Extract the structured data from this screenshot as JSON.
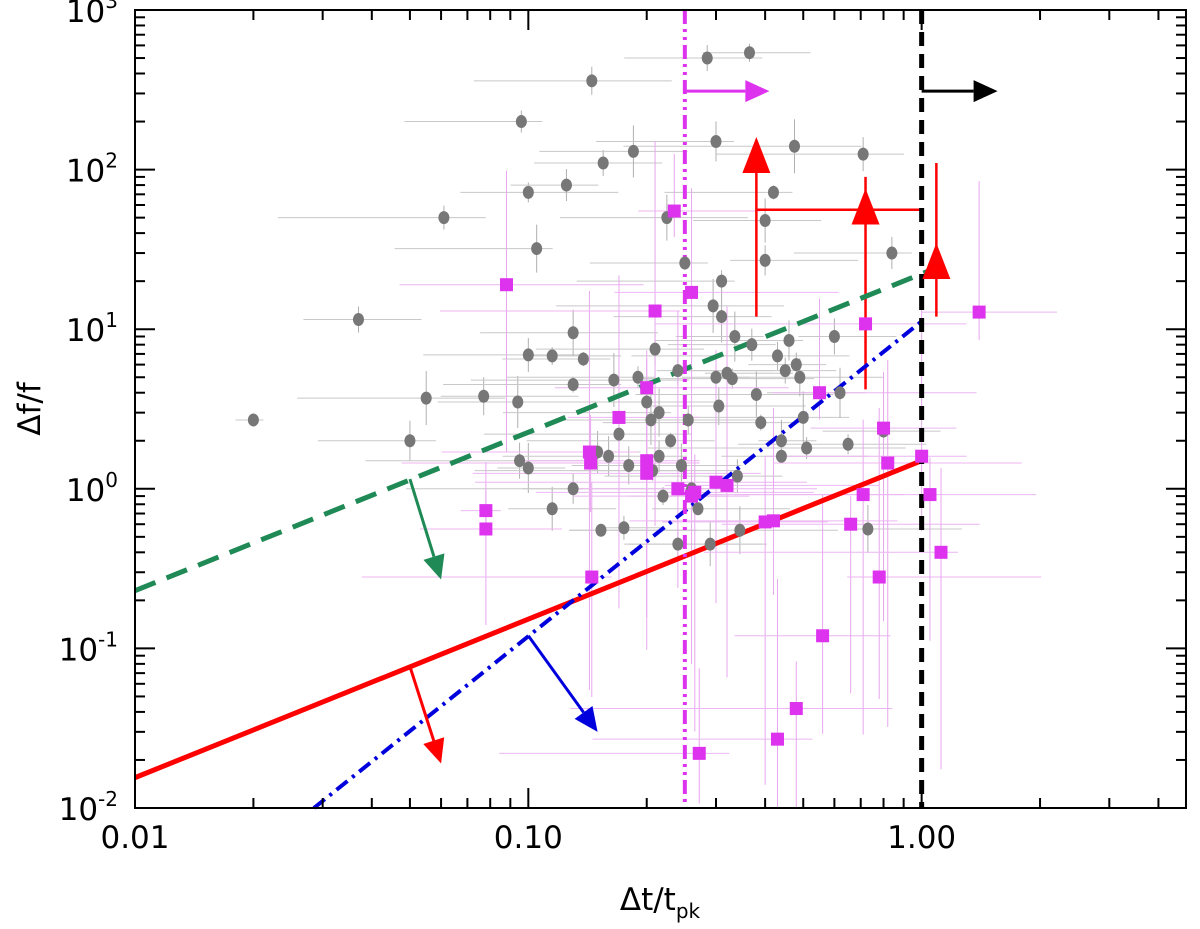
{
  "chart_data": {
    "type": "scatter",
    "title": "",
    "xlabel": "Δt/t",
    "xlabel_sub": "pk",
    "ylabel": "Δf/f",
    "xscale": "log",
    "yscale": "log",
    "xlim": [
      0.01,
      4.7
    ],
    "ylim": [
      0.01,
      1000
    ],
    "x_tick_labels": [
      "0.01",
      "0.10",
      "1.00"
    ],
    "y_tick_labels": [
      {
        "base": "10",
        "exp": "-2"
      },
      {
        "base": "10",
        "exp": "-1"
      },
      {
        "base": "10",
        "exp": "0"
      },
      {
        "base": "10",
        "exp": "1"
      },
      {
        "base": "10",
        "exp": "2"
      },
      {
        "base": "10",
        "exp": "3"
      }
    ],
    "colors": {
      "gray": "#777777",
      "magenta": "#dd33ee",
      "red": "#ff0000",
      "green": "#1f8a55",
      "blue": "#0000dd",
      "black": "#000000"
    },
    "series": [
      {
        "marker": "circle",
        "color": "#777777",
        "points": [
          [
            0.02,
            2.7
          ],
          [
            0.037,
            11.5
          ],
          [
            0.05,
            2.0
          ],
          [
            0.055,
            3.7
          ],
          [
            0.061,
            50
          ],
          [
            0.077,
            3.8
          ],
          [
            0.094,
            3.5
          ],
          [
            0.096,
            200
          ],
          [
            0.095,
            1.5
          ],
          [
            0.1,
            1.35
          ],
          [
            0.1,
            72
          ],
          [
            0.1,
            6.9
          ],
          [
            0.105,
            32
          ],
          [
            0.115,
            6.8
          ],
          [
            0.125,
            80
          ],
          [
            0.13,
            9.5
          ],
          [
            0.13,
            4.5
          ],
          [
            0.13,
            1.0
          ],
          [
            0.115,
            0.75
          ],
          [
            0.138,
            6.5
          ],
          [
            0.145,
            360
          ],
          [
            0.15,
            1.7
          ],
          [
            0.153,
            0.55
          ],
          [
            0.155,
            110
          ],
          [
            0.16,
            1.6
          ],
          [
            0.165,
            4.8
          ],
          [
            0.175,
            0.57
          ],
          [
            0.18,
            1.4
          ],
          [
            0.185,
            130
          ],
          [
            0.19,
            5.0
          ],
          [
            0.2,
            3.5
          ],
          [
            0.205,
            2.7
          ],
          [
            0.207,
            1.3
          ],
          [
            0.21,
            7.5
          ],
          [
            0.215,
            3.0
          ],
          [
            0.22,
            0.9
          ],
          [
            0.215,
            1.6
          ],
          [
            0.225,
            50
          ],
          [
            0.23,
            2.0
          ],
          [
            0.24,
            5.5
          ],
          [
            0.245,
            1.4
          ],
          [
            0.25,
            26
          ],
          [
            0.255,
            2.7
          ],
          [
            0.26,
            1.0
          ],
          [
            0.27,
            0.75
          ],
          [
            0.285,
            500
          ],
          [
            0.3,
            150
          ],
          [
            0.295,
            14
          ],
          [
            0.3,
            5.0
          ],
          [
            0.305,
            3.3
          ],
          [
            0.31,
            12
          ],
          [
            0.31,
            20
          ],
          [
            0.32,
            5.3
          ],
          [
            0.335,
            9.0
          ],
          [
            0.33,
            4.9
          ],
          [
            0.34,
            1.2
          ],
          [
            0.345,
            0.55
          ],
          [
            0.365,
            540
          ],
          [
            0.37,
            8.0
          ],
          [
            0.38,
            3.9
          ],
          [
            0.39,
            2.6
          ],
          [
            0.4,
            27
          ],
          [
            0.4,
            48
          ],
          [
            0.42,
            72
          ],
          [
            0.43,
            6.8
          ],
          [
            0.44,
            2.0
          ],
          [
            0.44,
            1.6
          ],
          [
            0.45,
            5.5
          ],
          [
            0.46,
            8.5
          ],
          [
            0.475,
            140
          ],
          [
            0.48,
            6.0
          ],
          [
            0.49,
            5.0
          ],
          [
            0.5,
            2.8
          ],
          [
            0.51,
            1.8
          ],
          [
            0.6,
            9.0
          ],
          [
            0.62,
            4.0
          ],
          [
            0.65,
            1.9
          ],
          [
            0.71,
            125
          ],
          [
            0.73,
            0.56
          ],
          [
            0.8,
            2.3
          ],
          [
            0.84,
            30
          ],
          [
            0.17,
            2.2
          ],
          [
            0.2,
            1.3
          ],
          [
            0.24,
            0.45
          ],
          [
            0.29,
            0.45
          ]
        ]
      },
      {
        "marker": "square",
        "color": "#dd33ee",
        "points": [
          [
            0.078,
            0.73
          ],
          [
            0.078,
            0.56
          ],
          [
            0.088,
            19
          ],
          [
            0.143,
            1.7
          ],
          [
            0.144,
            1.45
          ],
          [
            0.145,
            0.28
          ],
          [
            0.17,
            2.8
          ],
          [
            0.2,
            4.3
          ],
          [
            0.2,
            1.5
          ],
          [
            0.2,
            1.25
          ],
          [
            0.21,
            13
          ],
          [
            0.235,
            55
          ],
          [
            0.26,
            17
          ],
          [
            0.26,
            0.9
          ],
          [
            0.265,
            0.95
          ],
          [
            0.272,
            0.022
          ],
          [
            0.3,
            1.1
          ],
          [
            0.32,
            1.05
          ],
          [
            0.4,
            0.62
          ],
          [
            0.42,
            0.63
          ],
          [
            0.43,
            0.027
          ],
          [
            0.48,
            0.042
          ],
          [
            0.55,
            4.0
          ],
          [
            0.56,
            0.12
          ],
          [
            0.66,
            0.6
          ],
          [
            0.71,
            0.92
          ],
          [
            0.72,
            10.8
          ],
          [
            0.78,
            0.28
          ],
          [
            0.8,
            2.4
          ],
          [
            0.82,
            1.45
          ],
          [
            1.0,
            1.6
          ],
          [
            1.05,
            0.92
          ],
          [
            1.12,
            0.4
          ],
          [
            1.4,
            12.8
          ],
          [
            0.24,
            1.0
          ]
        ]
      },
      {
        "marker": "triangle-up",
        "color": "#ff0000",
        "points": [
          [
            0.38,
            120
          ],
          [
            0.72,
            57
          ],
          [
            1.09,
            26
          ]
        ]
      }
    ],
    "lines": [
      {
        "style": "dashed",
        "color": "#1f8a55",
        "from": [
          0.01,
          0.23
        ],
        "to": [
          1.08,
          24
        ]
      },
      {
        "style": "solid",
        "color": "#ff0000",
        "from": [
          0.01,
          0.0155
        ],
        "to": [
          1.0,
          1.5
        ]
      },
      {
        "style": "dash-dot",
        "color": "#0000dd",
        "from": [
          0.0285,
          0.01
        ],
        "to": [
          1.0,
          11.2
        ]
      },
      {
        "style": "dash-dot-dot-vertical",
        "color": "#dd33ee",
        "x": 0.25
      },
      {
        "style": "dashed-vertical",
        "color": "#000000",
        "x": 1.0
      }
    ]
  }
}
